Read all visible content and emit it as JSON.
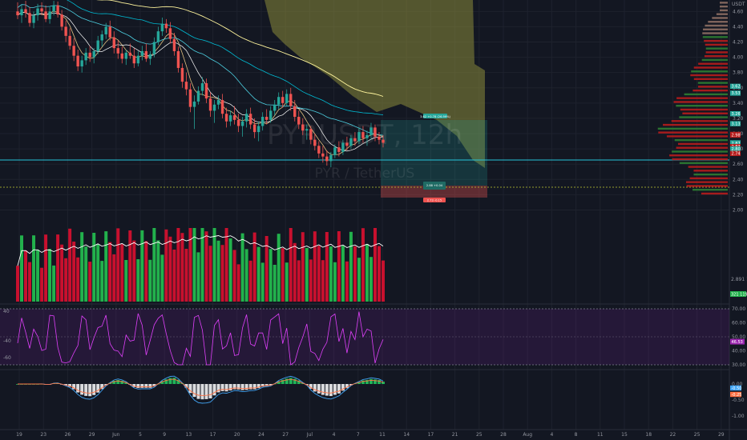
{
  "chart_data": {
    "type": "candlestick",
    "watermark": {
      "symbol": "PYRUSDT, 12h",
      "name": "PYR / TetherUS"
    },
    "price_axis": {
      "ticks": [
        "4.60",
        "4.40",
        "4.20",
        "4.00",
        "3.80",
        "3.60",
        "3.40",
        "3.20",
        "3.00",
        "2.80",
        "2.60",
        "2.40",
        "2.20",
        "2.00"
      ],
      "ylim": [
        1.9,
        4.75
      ],
      "axis_top_label": "USDT",
      "badges": [
        {
          "label": "3.62",
          "value": 3.62,
          "color": "#26a69a"
        },
        {
          "label": "3.53",
          "value": 3.53,
          "color": "#26a69a"
        },
        {
          "label": "3.26",
          "value": 3.26,
          "color": "#26a69a"
        },
        {
          "label": "3.13",
          "value": 3.13,
          "color": "#26a69a"
        },
        {
          "label": "2.99",
          "value": 2.99,
          "color": "#b71c1c"
        },
        {
          "label": "2.98",
          "value": 2.98,
          "color": "#b71c1c"
        },
        {
          "label": "2.88",
          "value": 2.88,
          "color": "#26a69a"
        },
        {
          "label": "2.87",
          "value": 2.87,
          "color": "#26a69a"
        },
        {
          "label": "2.83",
          "value": 2.83,
          "color": "#b71c1c"
        },
        {
          "label": "2.80",
          "value": 2.8,
          "color": "#26a69a"
        },
        {
          "label": "2.74",
          "value": 2.74,
          "color": "#b71c1c"
        }
      ]
    },
    "candles": [
      {
        "o": 4.6,
        "h": 4.72,
        "l": 4.5,
        "c": 4.55
      },
      {
        "o": 4.55,
        "h": 4.68,
        "l": 4.45,
        "c": 4.63
      },
      {
        "o": 4.63,
        "h": 4.74,
        "l": 4.52,
        "c": 4.58
      },
      {
        "o": 4.58,
        "h": 4.66,
        "l": 4.4,
        "c": 4.45
      },
      {
        "o": 4.45,
        "h": 4.6,
        "l": 4.38,
        "c": 4.55
      },
      {
        "o": 4.55,
        "h": 4.7,
        "l": 4.48,
        "c": 4.64
      },
      {
        "o": 4.64,
        "h": 4.72,
        "l": 4.55,
        "c": 4.6
      },
      {
        "o": 4.6,
        "h": 4.68,
        "l": 4.46,
        "c": 4.5
      },
      {
        "o": 4.5,
        "h": 4.66,
        "l": 4.44,
        "c": 4.6
      },
      {
        "o": 4.6,
        "h": 4.74,
        "l": 4.55,
        "c": 4.68
      },
      {
        "o": 4.68,
        "h": 4.73,
        "l": 4.52,
        "c": 4.56
      },
      {
        "o": 4.56,
        "h": 4.62,
        "l": 4.35,
        "c": 4.4
      },
      {
        "o": 4.4,
        "h": 4.48,
        "l": 4.2,
        "c": 4.28
      },
      {
        "o": 4.28,
        "h": 4.38,
        "l": 4.1,
        "c": 4.15
      },
      {
        "o": 4.15,
        "h": 4.25,
        "l": 3.95,
        "c": 4.02
      },
      {
        "o": 4.02,
        "h": 4.1,
        "l": 3.82,
        "c": 3.88
      },
      {
        "o": 3.88,
        "h": 4.02,
        "l": 3.8,
        "c": 3.96
      },
      {
        "o": 3.96,
        "h": 4.12,
        "l": 3.9,
        "c": 4.06
      },
      {
        "o": 4.06,
        "h": 4.15,
        "l": 3.94,
        "c": 4.0
      },
      {
        "o": 4.0,
        "h": 4.12,
        "l": 3.92,
        "c": 4.08
      },
      {
        "o": 4.08,
        "h": 4.28,
        "l": 4.04,
        "c": 4.22
      },
      {
        "o": 4.22,
        "h": 4.35,
        "l": 4.14,
        "c": 4.3
      },
      {
        "o": 4.3,
        "h": 4.45,
        "l": 4.24,
        "c": 4.4
      },
      {
        "o": 4.4,
        "h": 4.48,
        "l": 4.22,
        "c": 4.26
      },
      {
        "o": 4.26,
        "h": 4.34,
        "l": 4.05,
        "c": 4.12
      },
      {
        "o": 4.12,
        "h": 4.22,
        "l": 3.98,
        "c": 4.05
      },
      {
        "o": 4.05,
        "h": 4.14,
        "l": 3.92,
        "c": 3.98
      },
      {
        "o": 3.98,
        "h": 4.1,
        "l": 3.9,
        "c": 4.06
      },
      {
        "o": 4.06,
        "h": 4.18,
        "l": 3.98,
        "c": 4.02
      },
      {
        "o": 4.02,
        "h": 4.12,
        "l": 3.86,
        "c": 3.92
      },
      {
        "o": 3.92,
        "h": 4.08,
        "l": 3.88,
        "c": 4.02
      },
      {
        "o": 4.02,
        "h": 4.15,
        "l": 3.96,
        "c": 4.08
      },
      {
        "o": 4.08,
        "h": 4.18,
        "l": 3.94,
        "c": 3.98
      },
      {
        "o": 3.98,
        "h": 4.08,
        "l": 3.9,
        "c": 4.04
      },
      {
        "o": 4.04,
        "h": 4.26,
        "l": 4.0,
        "c": 4.2
      },
      {
        "o": 4.2,
        "h": 4.4,
        "l": 4.16,
        "c": 4.34
      },
      {
        "o": 4.34,
        "h": 4.52,
        "l": 4.28,
        "c": 4.44
      },
      {
        "o": 4.44,
        "h": 4.5,
        "l": 4.32,
        "c": 4.38
      },
      {
        "o": 4.38,
        "h": 4.46,
        "l": 4.18,
        "c": 4.24
      },
      {
        "o": 4.24,
        "h": 4.32,
        "l": 4.02,
        "c": 4.08
      },
      {
        "o": 4.08,
        "h": 4.14,
        "l": 3.8,
        "c": 3.86
      },
      {
        "o": 3.86,
        "h": 3.92,
        "l": 3.6,
        "c": 3.68
      },
      {
        "o": 3.68,
        "h": 3.8,
        "l": 3.5,
        "c": 3.58
      },
      {
        "o": 3.58,
        "h": 3.66,
        "l": 3.28,
        "c": 3.35
      },
      {
        "o": 3.35,
        "h": 3.5,
        "l": 3.06,
        "c": 3.42
      },
      {
        "o": 3.42,
        "h": 3.62,
        "l": 3.38,
        "c": 3.56
      },
      {
        "o": 3.56,
        "h": 3.74,
        "l": 3.5,
        "c": 3.66
      },
      {
        "o": 3.66,
        "h": 3.72,
        "l": 3.4,
        "c": 3.46
      },
      {
        "o": 3.46,
        "h": 3.54,
        "l": 3.22,
        "c": 3.3
      },
      {
        "o": 3.3,
        "h": 3.44,
        "l": 3.14,
        "c": 3.38
      },
      {
        "o": 3.38,
        "h": 3.5,
        "l": 3.32,
        "c": 3.44
      },
      {
        "o": 3.44,
        "h": 3.52,
        "l": 3.2,
        "c": 3.26
      },
      {
        "o": 3.26,
        "h": 3.34,
        "l": 3.08,
        "c": 3.16
      },
      {
        "o": 3.16,
        "h": 3.3,
        "l": 3.1,
        "c": 3.24
      },
      {
        "o": 3.24,
        "h": 3.36,
        "l": 3.12,
        "c": 3.18
      },
      {
        "o": 3.18,
        "h": 3.26,
        "l": 3.02,
        "c": 3.1
      },
      {
        "o": 3.1,
        "h": 3.22,
        "l": 2.96,
        "c": 3.16
      },
      {
        "o": 3.16,
        "h": 3.32,
        "l": 3.08,
        "c": 3.26
      },
      {
        "o": 3.26,
        "h": 3.34,
        "l": 3.06,
        "c": 3.12
      },
      {
        "o": 3.12,
        "h": 3.2,
        "l": 2.94,
        "c": 3.02
      },
      {
        "o": 3.02,
        "h": 3.16,
        "l": 2.9,
        "c": 3.1
      },
      {
        "o": 3.1,
        "h": 3.28,
        "l": 3.04,
        "c": 3.22
      },
      {
        "o": 3.22,
        "h": 3.32,
        "l": 3.12,
        "c": 3.18
      },
      {
        "o": 3.18,
        "h": 3.36,
        "l": 3.14,
        "c": 3.3
      },
      {
        "o": 3.3,
        "h": 3.44,
        "l": 3.24,
        "c": 3.38
      },
      {
        "o": 3.38,
        "h": 3.54,
        "l": 3.32,
        "c": 3.48
      },
      {
        "o": 3.48,
        "h": 3.56,
        "l": 3.34,
        "c": 3.4
      },
      {
        "o": 3.4,
        "h": 3.58,
        "l": 3.36,
        "c": 3.52
      },
      {
        "o": 3.52,
        "h": 3.6,
        "l": 3.3,
        "c": 3.36
      },
      {
        "o": 3.36,
        "h": 3.44,
        "l": 3.16,
        "c": 3.22
      },
      {
        "o": 3.22,
        "h": 3.3,
        "l": 3.06,
        "c": 3.12
      },
      {
        "o": 3.12,
        "h": 3.2,
        "l": 2.98,
        "c": 3.04
      },
      {
        "o": 3.04,
        "h": 3.12,
        "l": 2.92,
        "c": 3.06
      },
      {
        "o": 3.06,
        "h": 3.1,
        "l": 2.86,
        "c": 2.92
      },
      {
        "o": 2.92,
        "h": 3.0,
        "l": 2.78,
        "c": 2.84
      },
      {
        "o": 2.84,
        "h": 2.9,
        "l": 2.68,
        "c": 2.74
      },
      {
        "o": 2.74,
        "h": 2.84,
        "l": 2.62,
        "c": 2.7
      },
      {
        "o": 2.7,
        "h": 2.78,
        "l": 2.58,
        "c": 2.64
      },
      {
        "o": 2.64,
        "h": 2.76,
        "l": 2.56,
        "c": 2.72
      },
      {
        "o": 2.72,
        "h": 2.86,
        "l": 2.68,
        "c": 2.82
      },
      {
        "o": 2.82,
        "h": 2.9,
        "l": 2.7,
        "c": 2.76
      },
      {
        "o": 2.76,
        "h": 2.92,
        "l": 2.72,
        "c": 2.88
      },
      {
        "o": 2.88,
        "h": 2.96,
        "l": 2.78,
        "c": 2.84
      },
      {
        "o": 2.84,
        "h": 2.98,
        "l": 2.8,
        "c": 2.94
      },
      {
        "o": 2.94,
        "h": 3.02,
        "l": 2.84,
        "c": 2.9
      },
      {
        "o": 2.9,
        "h": 3.08,
        "l": 2.86,
        "c": 3.02
      },
      {
        "o": 3.02,
        "h": 3.1,
        "l": 2.88,
        "c": 2.94
      },
      {
        "o": 2.94,
        "h": 3.04,
        "l": 2.84,
        "c": 2.98
      },
      {
        "o": 2.98,
        "h": 3.14,
        "l": 2.92,
        "c": 3.08
      },
      {
        "o": 3.08,
        "h": 3.12,
        "l": 2.9,
        "c": 2.96
      },
      {
        "o": 2.96,
        "h": 3.02,
        "l": 2.86,
        "c": 2.92
      },
      {
        "o": 2.92,
        "h": 2.98,
        "l": 2.82,
        "c": 2.88
      }
    ],
    "volume": {
      "label": "2.891 17M",
      "last_label": "321 119k"
    },
    "rsi": {
      "axis_ticks": [
        "70.00",
        "60.00",
        "50.00",
        "40.00",
        "30.00"
      ],
      "left_ticks": [
        "40",
        "-40",
        "-60"
      ],
      "current": "46.53"
    },
    "macd": {
      "axis_ticks": [
        "0.00",
        "-0.50",
        "-1.00"
      ],
      "badges": [
        "-0.50",
        "-0.25"
      ]
    },
    "x_axis": {
      "ticks": [
        "19",
        "23",
        "26",
        "29",
        "Jun",
        "5",
        "9",
        "13",
        "17",
        "20",
        "24",
        "27",
        "Jul",
        "4",
        "7",
        "11",
        "14",
        "17",
        "21",
        "25",
        "28",
        "Aug",
        "4",
        "8",
        "11",
        "15",
        "18",
        "22",
        "25",
        "29"
      ]
    },
    "projection": {
      "long_label": "3.62 +0.78 (26.99%)",
      "entry_label": "2.88 +0.04",
      "stop_label": "2.73 -0.15"
    }
  }
}
